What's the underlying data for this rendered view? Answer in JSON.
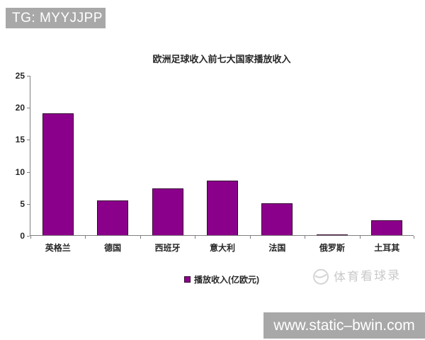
{
  "banners": {
    "top_left": {
      "text": "TG: MYYJJPP"
    },
    "bottom_right": {
      "text": "www.static–bwin.com"
    }
  },
  "watermark": {
    "text": "体育看球录"
  },
  "chart_data": {
    "type": "bar",
    "title": "欧洲足球收入前七大国家播放收入",
    "categories": [
      "英格兰",
      "德国",
      "西班牙",
      "意大利",
      "法国",
      "俄罗斯",
      "土耳其"
    ],
    "values": [
      19,
      5.4,
      7.3,
      8.5,
      5,
      0.1,
      2.3
    ],
    "series_name": "播放收入(亿欧元)",
    "legend": [
      "播放收入(亿欧元)"
    ],
    "legend_position": "bottom",
    "bar_color": "#8B008B",
    "xlabel": "",
    "ylabel": "",
    "ylim": [
      0,
      25
    ],
    "ytick_step": 5,
    "grid": false
  }
}
